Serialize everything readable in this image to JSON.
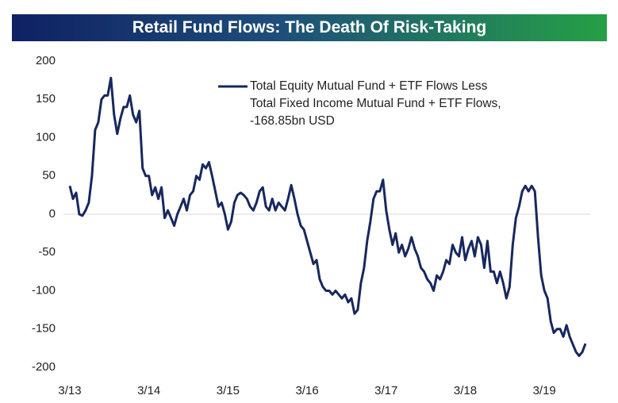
{
  "chart_data": {
    "type": "line",
    "title": "Retail Fund Flows: The Death Of Risk-Taking",
    "x": [
      2013.17,
      2013.21,
      2013.25,
      2013.29,
      2013.33,
      2013.37,
      2013.41,
      2013.45,
      2013.49,
      2013.53,
      2013.57,
      2013.61,
      2013.65,
      2013.69,
      2013.73,
      2013.77,
      2013.81,
      2013.85,
      2013.89,
      2013.93,
      2013.97,
      2014.01,
      2014.05,
      2014.09,
      2014.13,
      2014.17,
      2014.21,
      2014.25,
      2014.29,
      2014.33,
      2014.37,
      2014.41,
      2014.45,
      2014.49,
      2014.53,
      2014.57,
      2014.61,
      2014.65,
      2014.69,
      2014.73,
      2014.77,
      2014.81,
      2014.85,
      2014.89,
      2014.93,
      2014.97,
      2015.01,
      2015.05,
      2015.09,
      2015.13,
      2015.17,
      2015.21,
      2015.25,
      2015.29,
      2015.33,
      2015.37,
      2015.41,
      2015.45,
      2015.49,
      2015.53,
      2015.57,
      2015.61,
      2015.65,
      2015.69,
      2015.73,
      2015.77,
      2015.81,
      2015.85,
      2015.89,
      2015.93,
      2015.97,
      2016.01,
      2016.05,
      2016.09,
      2016.13,
      2016.17,
      2016.21,
      2016.25,
      2016.29,
      2016.33,
      2016.37,
      2016.41,
      2016.45,
      2016.49,
      2016.53,
      2016.57,
      2016.61,
      2016.65,
      2016.69,
      2016.73,
      2016.77,
      2016.81,
      2016.85,
      2016.89,
      2016.93,
      2016.97,
      2017.01,
      2017.05,
      2017.09,
      2017.13,
      2017.17,
      2017.21,
      2017.25,
      2017.29,
      2017.33,
      2017.37,
      2017.41,
      2017.45,
      2017.49,
      2017.53,
      2017.57,
      2017.61,
      2017.65,
      2017.69,
      2017.73,
      2017.77,
      2017.81,
      2017.85,
      2017.89,
      2017.93,
      2017.97,
      2018.01,
      2018.05,
      2018.09,
      2018.13,
      2018.17,
      2018.21,
      2018.25,
      2018.29,
      2018.33,
      2018.37,
      2018.41,
      2018.45,
      2018.49,
      2018.53,
      2018.57,
      2018.61,
      2018.65,
      2018.69,
      2018.73,
      2018.77,
      2018.81,
      2018.85,
      2018.89,
      2018.93,
      2018.97,
      2019.01,
      2019.05,
      2019.09,
      2019.13,
      2019.17,
      2019.21,
      2019.25,
      2019.29,
      2019.33,
      2019.37,
      2019.41,
      2019.45,
      2019.49,
      2019.53,
      2019.57,
      2019.61,
      2019.65,
      2019.69
    ],
    "series": [
      {
        "name": "Total Equity Mutual Fund + ETF Flows Less Total Fixed Income Mutual Fund + ETF Flows, -168.85bn USD",
        "color": "#17285e",
        "values": [
          37,
          20,
          28,
          0,
          -2,
          5,
          15,
          50,
          110,
          120,
          150,
          155,
          155,
          178,
          130,
          105,
          125,
          140,
          140,
          155,
          130,
          120,
          135,
          60,
          50,
          50,
          25,
          35,
          20,
          35,
          -5,
          5,
          -5,
          -15,
          0,
          10,
          20,
          5,
          25,
          30,
          50,
          45,
          65,
          60,
          68,
          50,
          30,
          10,
          15,
          0,
          -20,
          -10,
          15,
          25,
          28,
          25,
          20,
          10,
          5,
          15,
          30,
          35,
          10,
          5,
          20,
          5,
          15,
          10,
          5,
          20,
          38,
          20,
          0,
          -15,
          -20,
          -35,
          -50,
          -65,
          -60,
          -85,
          -95,
          -100,
          -100,
          -105,
          -100,
          -105,
          -110,
          -105,
          -115,
          -110,
          -130,
          -125,
          -90,
          -70,
          -35,
          -10,
          20,
          30,
          30,
          45,
          5,
          -20,
          -40,
          -25,
          -50,
          -40,
          -55,
          -45,
          -30,
          -45,
          -55,
          -70,
          -75,
          -85,
          -90,
          -100,
          -80,
          -85,
          -75,
          -60,
          -65,
          -40,
          -50,
          -55,
          -30,
          -60,
          -45,
          -35,
          -55,
          -30,
          -40,
          -70,
          -35,
          -75,
          -75,
          -90,
          -75,
          -90,
          -110,
          -95,
          -40,
          -5,
          10,
          30,
          37,
          30,
          37,
          30,
          -30,
          -80,
          -100,
          -110,
          -140,
          -155,
          -150,
          -150,
          -160,
          -145,
          -160,
          -170,
          -180,
          -185,
          -180,
          -169
        ]
      }
    ],
    "xlim": [
      2013.09,
      2019.75
    ],
    "xticks": [
      {
        "value": 2013.17,
        "label": "3/13"
      },
      {
        "value": 2014.17,
        "label": "3/14"
      },
      {
        "value": 2015.17,
        "label": "3/15"
      },
      {
        "value": 2016.17,
        "label": "3/16"
      },
      {
        "value": 2017.17,
        "label": "3/17"
      },
      {
        "value": 2018.17,
        "label": "3/18"
      },
      {
        "value": 2019.17,
        "label": "3/19"
      }
    ],
    "ylim": [
      -200,
      200
    ],
    "yticks": [
      -200,
      -150,
      -100,
      -50,
      0,
      50,
      100,
      150,
      200
    ],
    "grid": false
  }
}
